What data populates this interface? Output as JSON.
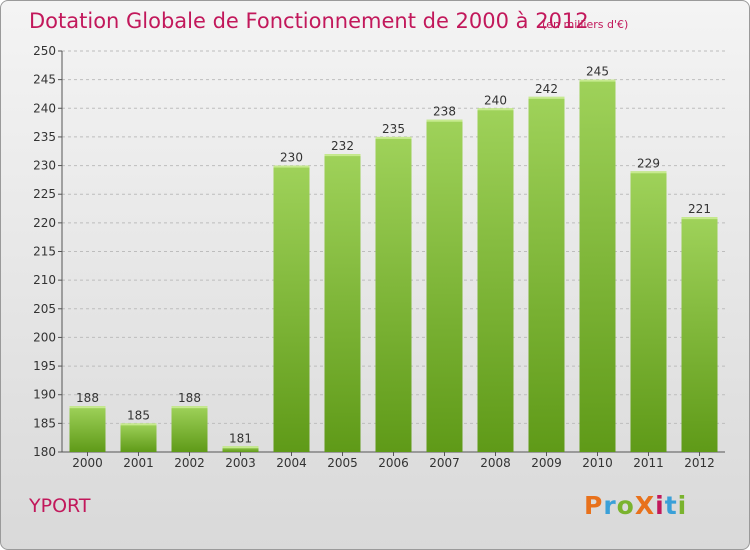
{
  "page": {
    "commune": "YPORT",
    "logo": "ProXiti",
    "logo_colors": [
      "#e8711b",
      "#3aa0d8",
      "#7ab32e",
      "#e8711b",
      "#c2185b",
      "#3aa0d8",
      "#7ab32e"
    ]
  },
  "colors": {
    "title": "#c2185b",
    "bar_light": "#9fd25a",
    "bar_dark": "#5f9a18",
    "grid": "#bdbdbd"
  },
  "chart_data": {
    "type": "bar",
    "title": "Dotation Globale de Fonctionnement de 2000 à 2012",
    "subtitle": "(en milliers d'€)",
    "xlabel": "",
    "ylabel": "",
    "categories": [
      "2000",
      "2001",
      "2002",
      "2003",
      "2004",
      "2005",
      "2006",
      "2007",
      "2008",
      "2009",
      "2010",
      "2011",
      "2012"
    ],
    "values": [
      188,
      185,
      188,
      181,
      230,
      232,
      235,
      238,
      240,
      242,
      245,
      229,
      221
    ],
    "ylim": [
      180,
      250
    ],
    "yticks": [
      180,
      185,
      190,
      195,
      200,
      205,
      210,
      215,
      220,
      225,
      230,
      235,
      240,
      245,
      250
    ],
    "grid": true,
    "legend": "none"
  }
}
